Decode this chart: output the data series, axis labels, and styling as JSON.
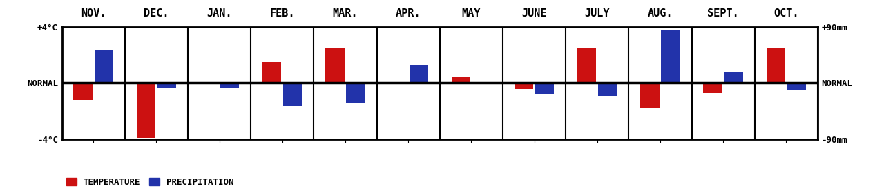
{
  "months": [
    "NOV.",
    "DEC.",
    "JAN.",
    "FEB.",
    "MAR.",
    "APR.",
    "MAY",
    "JUNE",
    "JULY",
    "AUG.",
    "SEPT.",
    "OCT."
  ],
  "temp_values": [
    -1.2,
    -3.9,
    0.0,
    1.5,
    2.5,
    0.0,
    0.4,
    -0.4,
    2.5,
    -1.8,
    -0.7,
    2.5
  ],
  "precip_values": [
    52,
    -7,
    -7,
    -37,
    -32,
    28,
    0,
    -18,
    -22,
    85,
    18,
    -12
  ],
  "temp_color": "#cc1111",
  "precip_color": "#2233aa",
  "bg_color": "#ffffff",
  "ylim_temp": [
    -4,
    4
  ],
  "ylim_precip": [
    -90,
    90
  ],
  "ylabel_left_top": "+4°C",
  "ylabel_left_normal": "NORMAL",
  "ylabel_left_bottom": "-4°C",
  "ylabel_right_top": "+90mm",
  "ylabel_right_normal": "NORMAL",
  "ylabel_right_bottom": "-90mm",
  "legend_temp": "TEMPERATURE",
  "legend_precip": "PRECIPITATION",
  "bar_width": 0.3,
  "figure_width": 12.8,
  "figure_height": 2.8,
  "dpi": 100,
  "month_fontsize": 11,
  "axis_label_fontsize": 9,
  "legend_fontsize": 9
}
